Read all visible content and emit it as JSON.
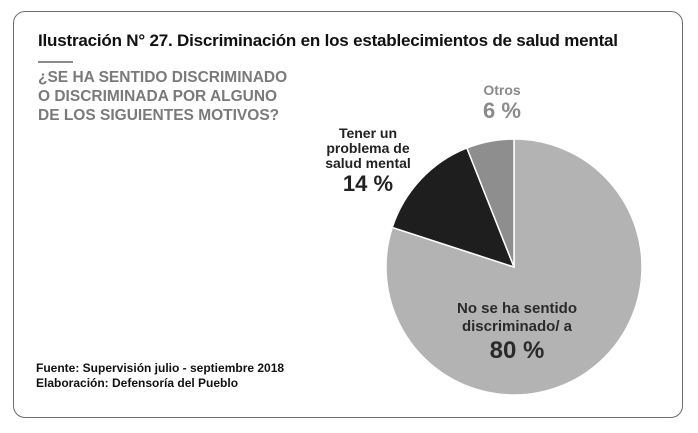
{
  "title": "Ilustración N° 27. Discriminación en los establecimientos de salud mental",
  "question": "¿SE HA SENTIDO DISCRIMINADO O DISCRIMINADA POR ALGUNO DE LOS SIGUIENTES MOTIVOS?",
  "source": {
    "line1": "Fuente: Supervisión julio - septiembre 2018",
    "line2": "Elaboración: Defensoría del Pueblo"
  },
  "chart_data": {
    "type": "pie",
    "start_angle_deg": 0,
    "direction": "clockwise",
    "slices": [
      {
        "label": "No se ha sentido discriminado/ a",
        "value": 80,
        "display": "80 %",
        "color": "#b3b3b3"
      },
      {
        "label": "Tener un problema de salud mental",
        "value": 14,
        "display": "14 %",
        "color": "#1e1e1e"
      },
      {
        "label": "Otros",
        "value": 6,
        "display": "6 %",
        "color": "#8e8e8e"
      }
    ]
  }
}
